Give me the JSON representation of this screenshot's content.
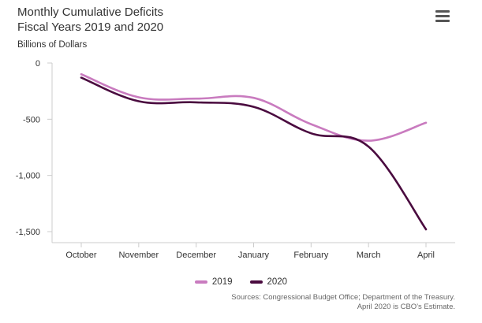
{
  "header": {
    "title_line1": "Monthly Cumulative Deficits",
    "title_line2": "Fiscal Years 2019 and 2020",
    "units": "Billions of Dollars",
    "menu_icon": "hamburger-menu-icon"
  },
  "chart_data": {
    "type": "line",
    "title": "Monthly Cumulative Deficits Fiscal Years 2019 and 2020",
    "ylabel": "Billions of Dollars",
    "xlabel": "",
    "categories": [
      "October",
      "November",
      "December",
      "January",
      "February",
      "March",
      "April"
    ],
    "ylim": [
      -1600,
      0
    ],
    "yticks": [
      0,
      -500,
      -1000,
      -1500
    ],
    "ytick_labels": [
      "0",
      "-500",
      "-1,000",
      "-1,500"
    ],
    "grid": false,
    "legend_position": "bottom-center",
    "series": [
      {
        "name": "2019",
        "color": "#c97bbf",
        "values": [
          -100,
          -305,
          -317,
          -310,
          -544,
          -691,
          -531
        ]
      },
      {
        "name": "2020",
        "color": "#4a0b3f",
        "values": [
          -130,
          -340,
          -350,
          -390,
          -625,
          -744,
          -1480
        ]
      }
    ]
  },
  "footer": {
    "source_line1": "Sources: Congressional Budget Office; Department of the Treasury.",
    "source_line2": "April 2020 is CBO's Estimate."
  }
}
